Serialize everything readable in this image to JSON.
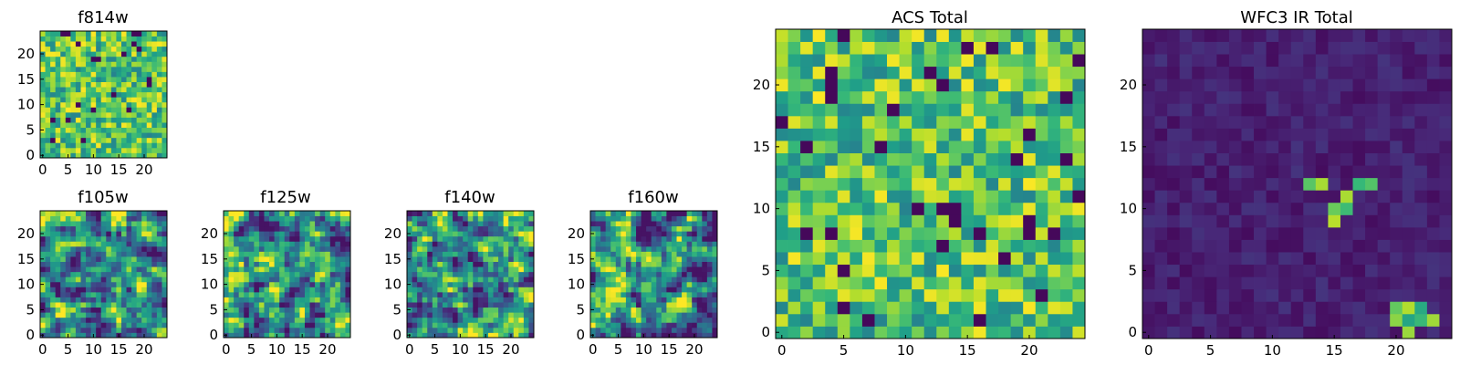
{
  "chart_data": [
    {
      "type": "heatmap",
      "title": "f814w",
      "xticks": [
        "0",
        "5",
        "10",
        "15",
        "20"
      ],
      "yticks": [
        "0",
        "5",
        "10",
        "15",
        "20"
      ],
      "xlim": [
        -0.5,
        24.5
      ],
      "ylim": [
        -0.5,
        24.5
      ],
      "grid_size": 25,
      "colormap": "viridis",
      "seed": 11,
      "pattern": "noise"
    },
    {
      "type": "heatmap",
      "title": "f105w",
      "xticks": [
        "0",
        "5",
        "10",
        "15",
        "20"
      ],
      "yticks": [
        "0",
        "5",
        "10",
        "15",
        "20"
      ],
      "xlim": [
        -0.5,
        24.5
      ],
      "ylim": [
        -0.5,
        24.5
      ],
      "grid_size": 25,
      "colormap": "viridis",
      "seed": 23,
      "pattern": "smooth"
    },
    {
      "type": "heatmap",
      "title": "f125w",
      "xticks": [
        "0",
        "5",
        "10",
        "15",
        "20"
      ],
      "yticks": [
        "0",
        "5",
        "10",
        "15",
        "20"
      ],
      "xlim": [
        -0.5,
        24.5
      ],
      "ylim": [
        -0.5,
        24.5
      ],
      "grid_size": 25,
      "colormap": "viridis",
      "seed": 37,
      "pattern": "smooth"
    },
    {
      "type": "heatmap",
      "title": "f140w",
      "xticks": [
        "0",
        "5",
        "10",
        "15",
        "20"
      ],
      "yticks": [
        "0",
        "5",
        "10",
        "15",
        "20"
      ],
      "xlim": [
        -0.5,
        24.5
      ],
      "ylim": [
        -0.5,
        24.5
      ],
      "grid_size": 25,
      "colormap": "viridis",
      "seed": 41,
      "pattern": "smooth"
    },
    {
      "type": "heatmap",
      "title": "f160w",
      "xticks": [
        "0",
        "5",
        "10",
        "15",
        "20"
      ],
      "yticks": [
        "0",
        "5",
        "10",
        "15",
        "20"
      ],
      "xlim": [
        -0.5,
        24.5
      ],
      "ylim": [
        -0.5,
        24.5
      ],
      "grid_size": 25,
      "colormap": "viridis",
      "seed": 53,
      "pattern": "smooth"
    },
    {
      "type": "heatmap",
      "title": "ACS Total",
      "xticks": [
        "0",
        "5",
        "10",
        "15",
        "20"
      ],
      "yticks": [
        "0",
        "5",
        "10",
        "15",
        "20"
      ],
      "xlim": [
        -0.5,
        24.5
      ],
      "ylim": [
        -0.5,
        24.5
      ],
      "grid_size": 25,
      "colormap": "viridis",
      "seed": 67,
      "pattern": "noise"
    },
    {
      "type": "heatmap",
      "title": "WFC3 IR Total",
      "xticks": [
        "0",
        "5",
        "10",
        "15",
        "20"
      ],
      "yticks": [
        "0",
        "5",
        "10",
        "15",
        "20"
      ],
      "xlim": [
        -0.5,
        24.5
      ],
      "ylim": [
        -0.5,
        24.5
      ],
      "grid_size": 25,
      "colormap": "viridis",
      "seed": 79,
      "pattern": "sources",
      "bright_cells": [
        [
          15,
          10
        ],
        [
          16,
          11
        ],
        [
          17,
          12
        ],
        [
          18,
          12
        ],
        [
          16,
          10
        ],
        [
          15,
          9
        ],
        [
          20,
          1
        ],
        [
          21,
          2
        ],
        [
          22,
          2
        ],
        [
          20,
          2
        ],
        [
          21,
          1
        ],
        [
          13,
          12
        ],
        [
          14,
          12
        ],
        [
          21,
          0
        ],
        [
          22,
          1
        ],
        [
          23,
          1
        ]
      ]
    }
  ]
}
